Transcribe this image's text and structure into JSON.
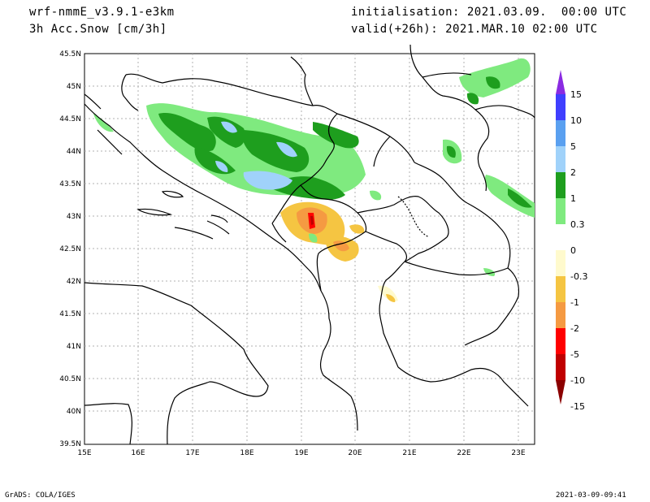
{
  "header": {
    "model": "wrf-nmmE_v3.9.1-e3km",
    "variable": "3h Acc.Snow [cm/3h]",
    "initialisation": "initialisation: 2021.03.09.  00:00 UTC",
    "valid": "valid(+26h): 2021.MAR.10 02:00 UTC"
  },
  "footer": {
    "software": "GrADS: COLA/IGES",
    "timestamp": "2021-03-09-09:41"
  },
  "map": {
    "lon_ticks": [
      "15E",
      "16E",
      "17E",
      "18E",
      "19E",
      "20E",
      "21E",
      "22E",
      "23E"
    ],
    "lat_ticks": [
      "45.5N",
      "45N",
      "44.5N",
      "44N",
      "43.5N",
      "43N",
      "42.5N",
      "42N",
      "41.5N",
      "41N",
      "40.5N",
      "40N",
      "39.5N"
    ],
    "lon_range": [
      15,
      23.3
    ],
    "lat_range": [
      39.5,
      45.5
    ]
  },
  "colorbar": {
    "labels": [
      "15",
      "10",
      "5",
      "2",
      "1",
      "0.3",
      "0",
      "-0.3",
      "-1",
      "-2",
      "-5",
      "-10",
      "-15"
    ],
    "colors": [
      "#8a2be2",
      "#3f3fff",
      "#5aa0f0",
      "#a0d2fa",
      "#1e9e1e",
      "#7fea7f",
      "#ffffff",
      "#fffacd",
      "#f5c542",
      "#f59a42",
      "#ff0000",
      "#c00000",
      "#8b0000"
    ]
  }
}
